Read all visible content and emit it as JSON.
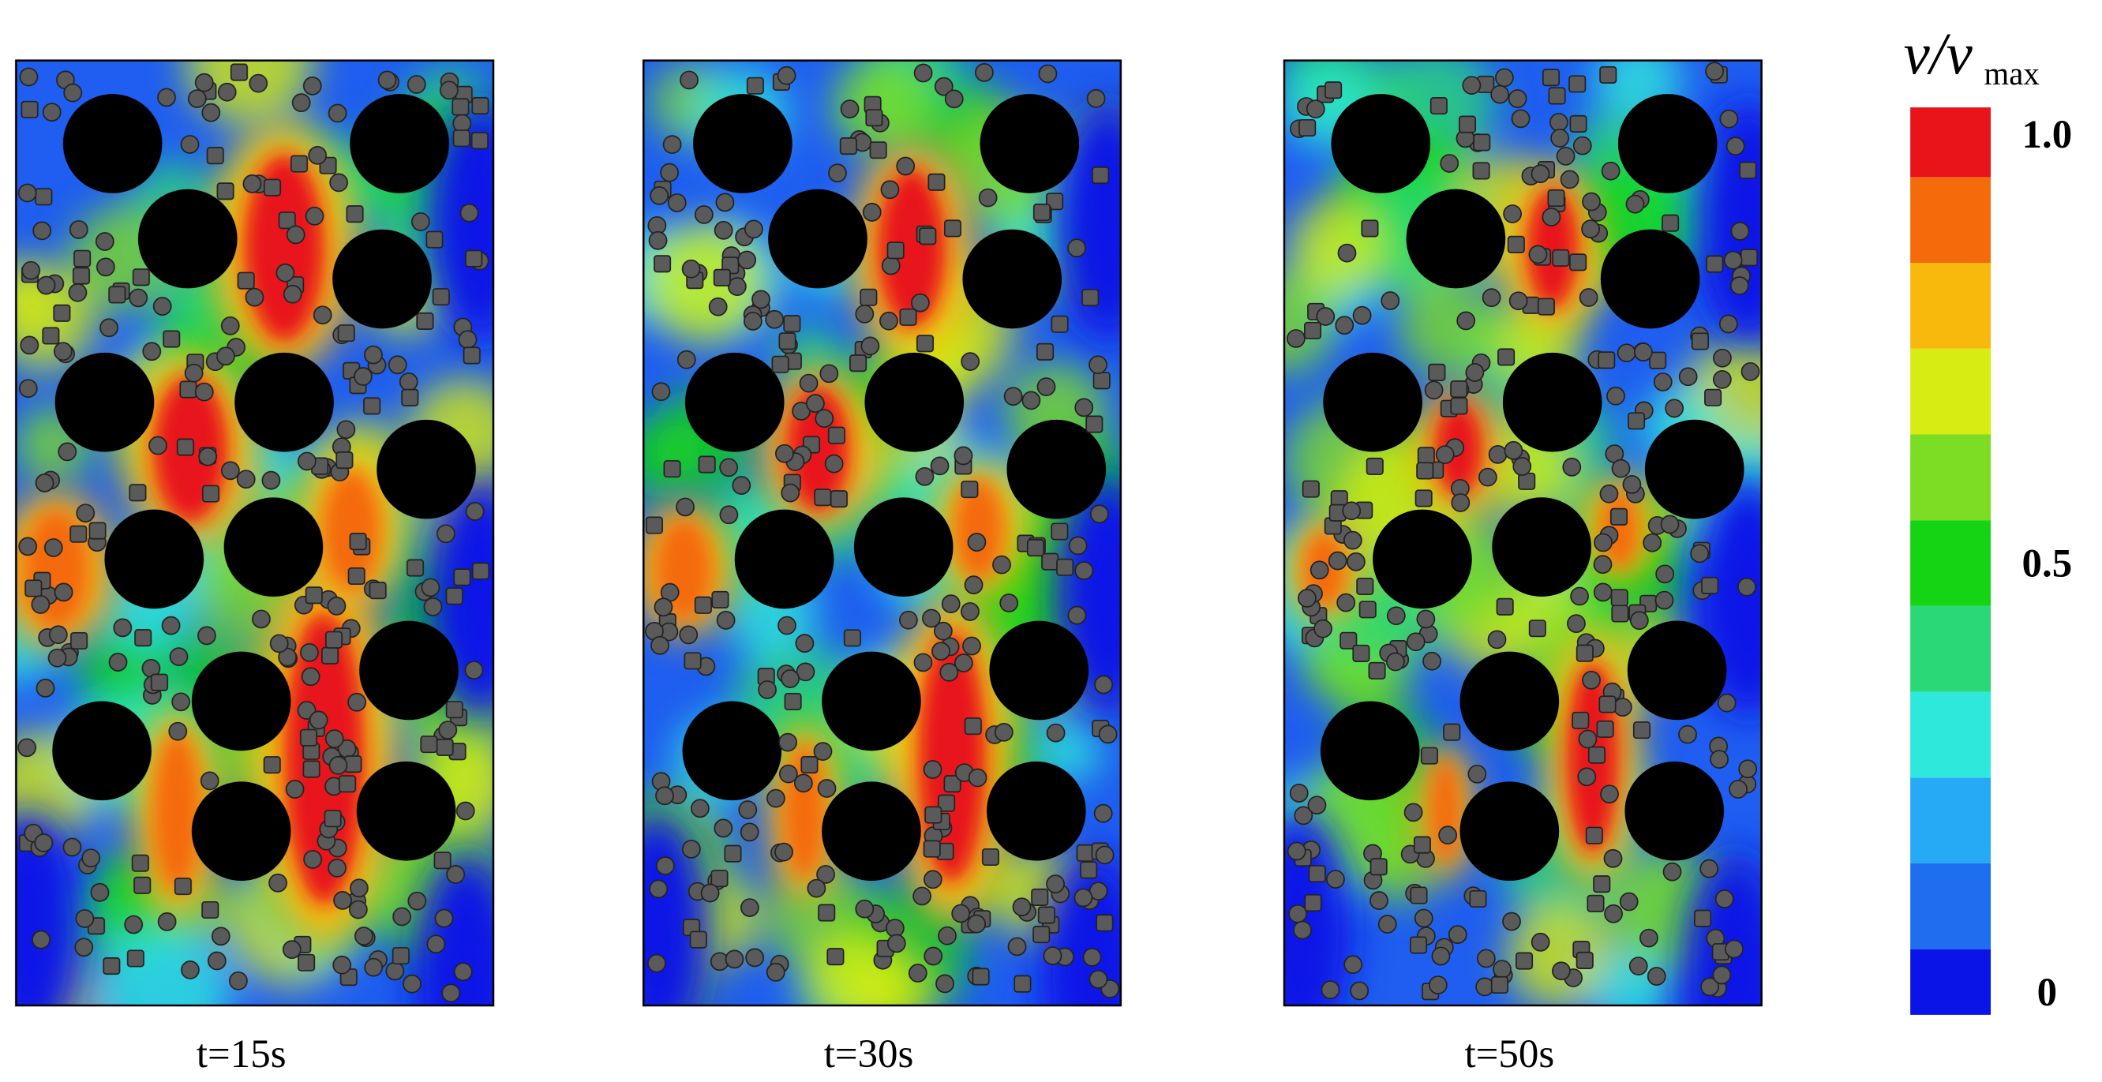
{
  "panels": [
    {
      "label": "t=15s"
    },
    {
      "label": "t=30s"
    },
    {
      "label": "t=50s"
    }
  ],
  "colorbar": {
    "title": "v/v",
    "title_subscript": "max",
    "range": [
      0,
      1
    ],
    "ticks": [
      {
        "value": 1,
        "label": "1.0"
      },
      0.5,
      0
    ],
    "colors": [
      "#0a14e6",
      "#1f6ef0",
      "#26aaf5",
      "#2ee8dc",
      "#2ad878",
      "#14d414",
      "#7ddc24",
      "#d6ec12",
      "#f9b80c",
      "#f46b0c",
      "#e8141a"
    ]
  }
}
